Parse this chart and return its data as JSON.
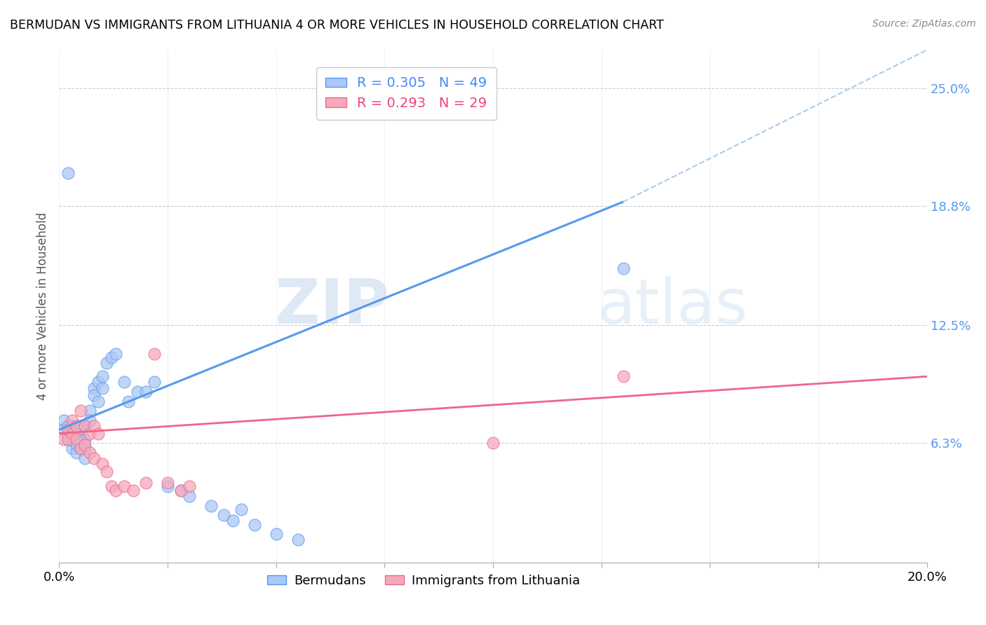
{
  "title": "BERMUDAN VS IMMIGRANTS FROM LITHUANIA 4 OR MORE VEHICLES IN HOUSEHOLD CORRELATION CHART",
  "source": "Source: ZipAtlas.com",
  "ylabel": "4 or more Vehicles in Household",
  "xlim": [
    0.0,
    0.2
  ],
  "ylim": [
    0.0,
    0.27
  ],
  "x_ticks": [
    0.0,
    0.025,
    0.05,
    0.075,
    0.1,
    0.125,
    0.15,
    0.175,
    0.2
  ],
  "x_tick_labels": [
    "0.0%",
    "",
    "",
    "",
    "",
    "",
    "",
    "",
    "20.0%"
  ],
  "y_ticks_right": [
    0.063,
    0.125,
    0.188,
    0.25
  ],
  "y_tick_labels_right": [
    "6.3%",
    "12.5%",
    "18.8%",
    "25.0%"
  ],
  "grid_color": "#cccccc",
  "background_color": "#ffffff",
  "blue_fill": "#adc8f5",
  "blue_edge": "#5599ee",
  "pink_fill": "#f5aabb",
  "pink_edge": "#ee6688",
  "r_blue": 0.305,
  "n_blue": 49,
  "r_pink": 0.293,
  "n_pink": 29,
  "legend_blue_label": "Bermudans",
  "legend_pink_label": "Immigrants from Lithuania",
  "watermark_zip": "ZIP",
  "watermark_atlas": "atlas",
  "blue_scatter_x": [
    0.001,
    0.001,
    0.002,
    0.002,
    0.002,
    0.003,
    0.003,
    0.003,
    0.003,
    0.004,
    0.004,
    0.004,
    0.004,
    0.005,
    0.005,
    0.005,
    0.005,
    0.006,
    0.006,
    0.006,
    0.006,
    0.007,
    0.007,
    0.008,
    0.008,
    0.009,
    0.009,
    0.01,
    0.01,
    0.011,
    0.012,
    0.013,
    0.015,
    0.016,
    0.018,
    0.02,
    0.022,
    0.025,
    0.028,
    0.03,
    0.035,
    0.038,
    0.04,
    0.042,
    0.045,
    0.05,
    0.055,
    0.13,
    0.002
  ],
  "blue_scatter_y": [
    0.075,
    0.07,
    0.072,
    0.068,
    0.065,
    0.072,
    0.068,
    0.064,
    0.06,
    0.07,
    0.068,
    0.062,
    0.058,
    0.072,
    0.068,
    0.064,
    0.06,
    0.072,
    0.065,
    0.06,
    0.055,
    0.08,
    0.075,
    0.092,
    0.088,
    0.095,
    0.085,
    0.098,
    0.092,
    0.105,
    0.108,
    0.11,
    0.095,
    0.085,
    0.09,
    0.09,
    0.095,
    0.04,
    0.038,
    0.035,
    0.03,
    0.025,
    0.022,
    0.028,
    0.02,
    0.015,
    0.012,
    0.155,
    0.205
  ],
  "pink_scatter_x": [
    0.001,
    0.002,
    0.002,
    0.003,
    0.003,
    0.004,
    0.004,
    0.005,
    0.005,
    0.006,
    0.006,
    0.007,
    0.007,
    0.008,
    0.008,
    0.009,
    0.01,
    0.011,
    0.012,
    0.013,
    0.015,
    0.017,
    0.02,
    0.022,
    0.025,
    0.028,
    0.03,
    0.13,
    0.1
  ],
  "pink_scatter_y": [
    0.065,
    0.07,
    0.065,
    0.075,
    0.068,
    0.072,
    0.065,
    0.08,
    0.06,
    0.072,
    0.062,
    0.068,
    0.058,
    0.072,
    0.055,
    0.068,
    0.052,
    0.048,
    0.04,
    0.038,
    0.04,
    0.038,
    0.042,
    0.11,
    0.042,
    0.038,
    0.04,
    0.098,
    0.063
  ],
  "blue_trend": [
    0.0,
    0.13,
    0.07,
    0.19
  ],
  "blue_dashed": [
    0.13,
    0.2,
    0.19,
    0.27
  ],
  "pink_trend": [
    0.0,
    0.2,
    0.068,
    0.098
  ]
}
